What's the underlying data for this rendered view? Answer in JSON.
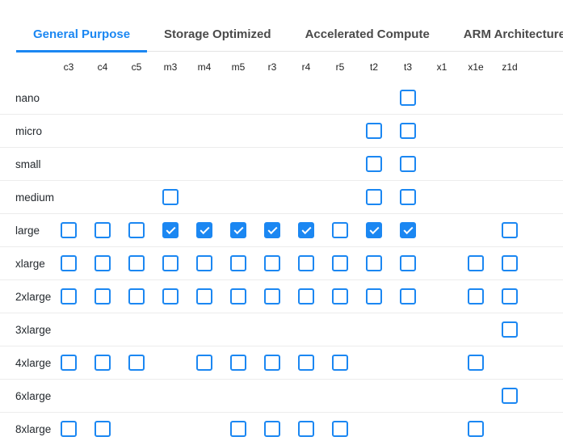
{
  "tabs": [
    {
      "label": "General Purpose",
      "active": true
    },
    {
      "label": "Storage Optimized",
      "active": false
    },
    {
      "label": "Accelerated Compute",
      "active": false
    },
    {
      "label": "ARM Architecture",
      "active": false
    }
  ],
  "matrix": {
    "columns": [
      "c3",
      "c4",
      "c5",
      "m3",
      "m4",
      "m5",
      "r3",
      "r4",
      "r5",
      "t2",
      "t3",
      "x1",
      "x1e",
      "z1d"
    ],
    "rows": [
      {
        "label": "nano",
        "cells": [
          null,
          null,
          null,
          null,
          null,
          null,
          null,
          null,
          null,
          null,
          false,
          null,
          null,
          null
        ]
      },
      {
        "label": "micro",
        "cells": [
          null,
          null,
          null,
          null,
          null,
          null,
          null,
          null,
          null,
          false,
          false,
          null,
          null,
          null
        ]
      },
      {
        "label": "small",
        "cells": [
          null,
          null,
          null,
          null,
          null,
          null,
          null,
          null,
          null,
          false,
          false,
          null,
          null,
          null
        ]
      },
      {
        "label": "medium",
        "cells": [
          null,
          null,
          null,
          false,
          null,
          null,
          null,
          null,
          null,
          false,
          false,
          null,
          null,
          null
        ]
      },
      {
        "label": "large",
        "cells": [
          false,
          false,
          false,
          true,
          true,
          true,
          true,
          true,
          false,
          true,
          true,
          null,
          null,
          false
        ]
      },
      {
        "label": "xlarge",
        "cells": [
          false,
          false,
          false,
          false,
          false,
          false,
          false,
          false,
          false,
          false,
          false,
          null,
          false,
          false
        ]
      },
      {
        "label": "2xlarge",
        "cells": [
          false,
          false,
          false,
          false,
          false,
          false,
          false,
          false,
          false,
          false,
          false,
          null,
          false,
          false
        ]
      },
      {
        "label": "3xlarge",
        "cells": [
          null,
          null,
          null,
          null,
          null,
          null,
          null,
          null,
          null,
          null,
          null,
          null,
          null,
          false
        ]
      },
      {
        "label": "4xlarge",
        "cells": [
          false,
          false,
          false,
          null,
          false,
          false,
          false,
          false,
          false,
          null,
          null,
          null,
          false,
          null
        ]
      },
      {
        "label": "6xlarge",
        "cells": [
          null,
          null,
          null,
          null,
          null,
          null,
          null,
          null,
          null,
          null,
          null,
          null,
          null,
          false
        ]
      },
      {
        "label": "8xlarge",
        "cells": [
          false,
          false,
          null,
          null,
          null,
          false,
          false,
          false,
          false,
          null,
          null,
          null,
          false,
          null
        ]
      }
    ]
  },
  "colors": {
    "accent": "#1b87f2",
    "tab_inactive_text": "#4a4a4a",
    "row_label_text": "#24292e",
    "separator": "#ececec"
  }
}
